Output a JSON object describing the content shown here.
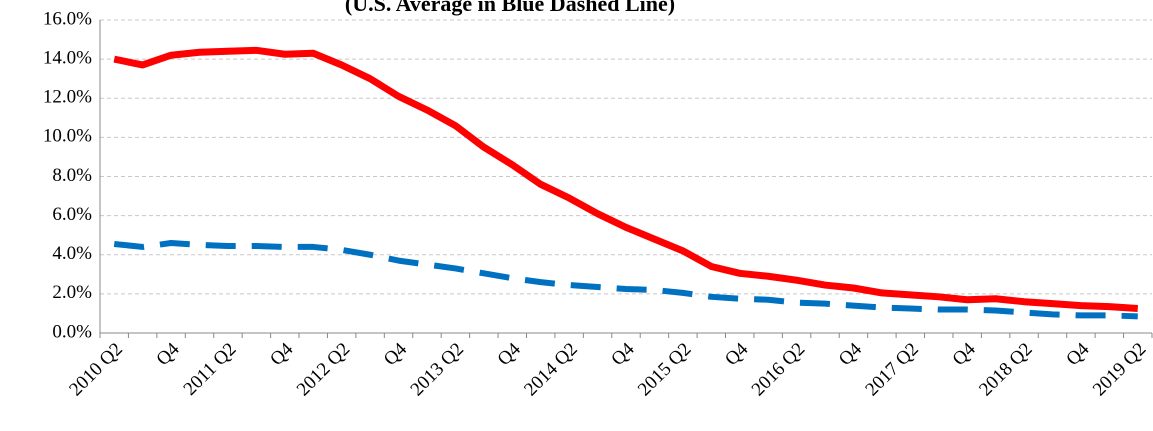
{
  "chart_data": {
    "type": "line",
    "subtitle": "(U.S. Average in Blue Dashed Line)",
    "categories": [
      "2010 Q2",
      null,
      "Q4",
      null,
      "2011 Q2",
      null,
      "Q4",
      null,
      "2012 Q2",
      null,
      "Q4",
      null,
      "2013 Q2",
      null,
      "Q4",
      null,
      "2014 Q2",
      null,
      "Q4",
      null,
      "2015 Q2",
      null,
      "Q4",
      null,
      "2016 Q2",
      null,
      "Q4",
      null,
      "2017 Q2",
      null,
      "Q4",
      null,
      "2018 Q2",
      null,
      "Q4",
      null,
      "2019 Q2"
    ],
    "series": [
      {
        "color": "#ff0000",
        "dashed": false,
        "values": [
          14.0,
          13.7,
          14.2,
          14.35,
          14.4,
          14.45,
          14.25,
          14.3,
          13.7,
          13.0,
          12.1,
          11.4,
          10.6,
          9.5,
          8.6,
          7.6,
          6.9,
          6.1,
          5.4,
          4.8,
          4.2,
          3.4,
          3.05,
          2.9,
          2.7,
          2.45,
          2.3,
          2.05,
          1.95,
          1.85,
          1.7,
          1.75,
          1.6,
          1.5,
          1.4,
          1.35,
          1.25
        ]
      },
      {
        "color": "#0070c0",
        "dashed": true,
        "values": [
          4.55,
          4.4,
          4.6,
          4.5,
          4.45,
          4.45,
          4.4,
          4.4,
          4.25,
          4.0,
          3.7,
          3.5,
          3.3,
          3.05,
          2.8,
          2.6,
          2.45,
          2.35,
          2.25,
          2.2,
          2.05,
          1.85,
          1.75,
          1.7,
          1.55,
          1.5,
          1.4,
          1.3,
          1.25,
          1.2,
          1.2,
          1.15,
          1.05,
          0.95,
          0.9,
          0.9,
          0.85
        ]
      }
    ],
    "ylim": [
      0,
      16
    ],
    "yticks": [
      {
        "value": 0,
        "label": "0.0%"
      },
      {
        "value": 2,
        "label": "2.0%"
      },
      {
        "value": 4,
        "label": "4.0%"
      },
      {
        "value": 6,
        "label": "6.0%"
      },
      {
        "value": 8,
        "label": "8.0%"
      },
      {
        "value": 10,
        "label": "10.0%"
      },
      {
        "value": 12,
        "label": "12.0%"
      },
      {
        "value": 14,
        "label": "14.0%"
      },
      {
        "value": 16,
        "label": "16.0%"
      }
    ],
    "grid": true
  }
}
